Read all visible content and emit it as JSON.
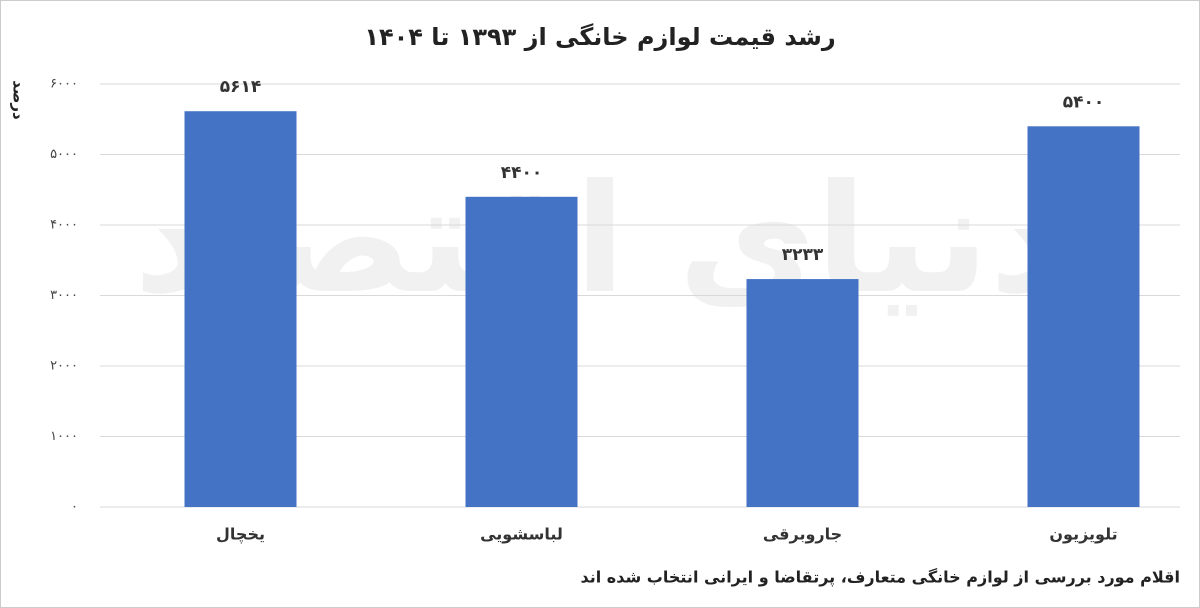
{
  "chart_data": {
    "type": "bar",
    "title": "رشد قیمت لوازم خانگی از ۱۳۹۳ تا ۱۴۰۴",
    "y_label": "درصد",
    "note": "اقلام مورد بررسی از لوازم خانگی متعارف، پرتقاضا و ایرانی انتخاب شده اند",
    "watermark": "دنیای اقتصاد",
    "categories": [
      "یخچال",
      "لباسشویی",
      "جاروبرقی",
      "تلویزیون"
    ],
    "values": [
      5614,
      4400,
      3233,
      5400
    ],
    "value_labels": [
      "۵۶۱۴",
      "۴۴۰۰",
      "۳۲۳۳",
      "۵۴۰۰"
    ],
    "color": "#4472c4",
    "ylim": [
      0,
      6000
    ],
    "yticks": [
      {
        "value": 0,
        "label": "۰"
      },
      {
        "value": 1000,
        "label": "۱۰۰۰"
      },
      {
        "value": 2000,
        "label": "۲۰۰۰"
      },
      {
        "value": 3000,
        "label": "۳۰۰۰"
      },
      {
        "value": 4000,
        "label": "۴۰۰۰"
      },
      {
        "value": 5000,
        "label": "۵۰۰۰"
      },
      {
        "value": 6000,
        "label": "۶۰۰۰"
      }
    ],
    "grid": true
  }
}
